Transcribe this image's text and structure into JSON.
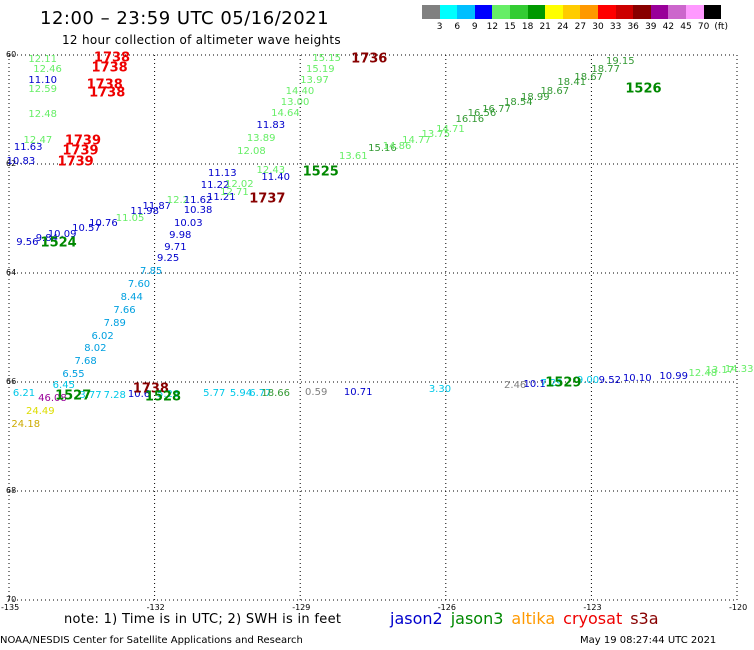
{
  "header": {
    "title": "12:00 – 23:59 UTC 05/16/2021",
    "subtitle": "12 hour collection of altimeter wave heights"
  },
  "colorbar": {
    "colors": [
      "#808080",
      "#00ffff",
      "#00bfff",
      "#0000ff",
      "#66ee66",
      "#33cc33",
      "#009900",
      "#ffff00",
      "#ffcc00",
      "#ff9900",
      "#ff0000",
      "#cc0000",
      "#880000",
      "#990099",
      "#cc66cc",
      "#ff99ff",
      "#000000"
    ],
    "labels": [
      "3",
      "6",
      "9",
      "12",
      "15",
      "18",
      "21",
      "24",
      "27",
      "30",
      "33",
      "36",
      "39",
      "42",
      "45",
      "70",
      "(ft)"
    ]
  },
  "map": {
    "lon_ticks": [
      "-135",
      "-132",
      "-129",
      "-126",
      "-123",
      "-120"
    ],
    "lat_ticks": [
      "60",
      "62",
      "64",
      "66",
      "68",
      "70"
    ],
    "lon_range": [
      -135,
      -120
    ],
    "lat_range": [
      60,
      70
    ],
    "observations": [
      {
        "t": "12.11",
        "c": "#66ee66",
        "lon": -134.6,
        "lat": 60.1
      },
      {
        "t": "12.46",
        "c": "#66ee66",
        "lon": -134.5,
        "lat": 60.28
      },
      {
        "t": "11.10",
        "c": "#0000cc",
        "lon": -134.6,
        "lat": 60.48
      },
      {
        "t": "12.59",
        "c": "#66ee66",
        "lon": -134.6,
        "lat": 60.65
      },
      {
        "t": "12.48",
        "c": "#66ee66",
        "lon": -134.6,
        "lat": 61.1
      },
      {
        "t": "12.47",
        "c": "#66ee66",
        "lon": -134.7,
        "lat": 61.58
      },
      {
        "t": "11.63",
        "c": "#0000cc",
        "lon": -134.9,
        "lat": 61.7
      },
      {
        "t": "10.83",
        "c": "#0000cc",
        "lon": -135.05,
        "lat": 61.97
      },
      {
        "t": "9.56",
        "c": "#0000cc",
        "lon": -134.85,
        "lat": 63.45
      },
      {
        "t": "9.84",
        "c": "#0000cc",
        "lon": -134.45,
        "lat": 63.38
      },
      {
        "t": "10.09",
        "c": "#0000cc",
        "lon": -134.2,
        "lat": 63.3
      },
      {
        "t": "10.57",
        "c": "#0000cc",
        "lon": -133.7,
        "lat": 63.2
      },
      {
        "t": "10.76",
        "c": "#0000cc",
        "lon": -133.35,
        "lat": 63.1
      },
      {
        "t": "11.05",
        "c": "#66ee66",
        "lon": -132.8,
        "lat": 63.0
      },
      {
        "t": "11.98",
        "c": "#0000cc",
        "lon": -132.5,
        "lat": 62.88
      },
      {
        "t": "11.87",
        "c": "#0000cc",
        "lon": -132.25,
        "lat": 62.78
      },
      {
        "t": "12.2",
        "c": "#66ee66",
        "lon": -131.75,
        "lat": 62.68
      },
      {
        "t": "11.62",
        "c": "#0000cc",
        "lon": -131.4,
        "lat": 62.68
      },
      {
        "t": "11.21",
        "c": "#0000cc",
        "lon": -130.92,
        "lat": 62.62
      },
      {
        "t": "11.22",
        "c": "#0000cc",
        "lon": -131.05,
        "lat": 62.4
      },
      {
        "t": "12.02",
        "c": "#66ee66",
        "lon": -130.55,
        "lat": 62.38
      },
      {
        "t": "12.71",
        "c": "#66ee66",
        "lon": -130.65,
        "lat": 62.54
      },
      {
        "t": "11.13",
        "c": "#0000cc",
        "lon": -130.9,
        "lat": 62.18
      },
      {
        "t": "11.40",
        "c": "#0000cc",
        "lon": -129.8,
        "lat": 62.25
      },
      {
        "t": "12.43",
        "c": "#66ee66",
        "lon": -129.9,
        "lat": 62.12
      },
      {
        "t": "12.08",
        "c": "#66ee66",
        "lon": -130.3,
        "lat": 61.78
      },
      {
        "t": "13.89",
        "c": "#66ee66",
        "lon": -130.1,
        "lat": 61.55
      },
      {
        "t": "11.83",
        "c": "#0000cc",
        "lon": -129.9,
        "lat": 61.3
      },
      {
        "t": "14.64",
        "c": "#66ee66",
        "lon": -129.6,
        "lat": 61.08
      },
      {
        "t": "13.00",
        "c": "#66ee66",
        "lon": -129.4,
        "lat": 60.88
      },
      {
        "t": "14.40",
        "c": "#66ee66",
        "lon": -129.3,
        "lat": 60.68
      },
      {
        "t": "13.97",
        "c": "#66ee66",
        "lon": -129.0,
        "lat": 60.47
      },
      {
        "t": "15.19",
        "c": "#66ee66",
        "lon": -128.88,
        "lat": 60.27
      },
      {
        "t": "15.15",
        "c": "#66ee66",
        "lon": -128.75,
        "lat": 60.07
      },
      {
        "t": "10.38",
        "c": "#0000cc",
        "lon": -131.4,
        "lat": 62.87
      },
      {
        "t": "10.03",
        "c": "#0000cc",
        "lon": -131.6,
        "lat": 63.1
      },
      {
        "t": "9.98",
        "c": "#0000cc",
        "lon": -131.7,
        "lat": 63.33
      },
      {
        "t": "9.71",
        "c": "#0000cc",
        "lon": -131.8,
        "lat": 63.55
      },
      {
        "t": "9.25",
        "c": "#0000cc",
        "lon": -131.95,
        "lat": 63.75
      },
      {
        "t": "7.85",
        "c": "#00a0e0",
        "lon": -132.3,
        "lat": 63.98
      },
      {
        "t": "7.60",
        "c": "#00a0e0",
        "lon": -132.55,
        "lat": 64.22
      },
      {
        "t": "8.44",
        "c": "#00a0e0",
        "lon": -132.7,
        "lat": 64.46
      },
      {
        "t": "7.66",
        "c": "#00a0e0",
        "lon": -132.85,
        "lat": 64.7
      },
      {
        "t": "7.89",
        "c": "#00a0e0",
        "lon": -133.05,
        "lat": 64.93
      },
      {
        "t": "6.02",
        "c": "#00a0e0",
        "lon": -133.3,
        "lat": 65.17
      },
      {
        "t": "8.02",
        "c": "#00a0e0",
        "lon": -133.45,
        "lat": 65.4
      },
      {
        "t": "7.68",
        "c": "#00a0e0",
        "lon": -133.65,
        "lat": 65.64
      },
      {
        "t": "6.55",
        "c": "#00a0e0",
        "lon": -133.9,
        "lat": 65.88
      },
      {
        "t": "6.45",
        "c": "#00c8e8",
        "lon": -134.1,
        "lat": 66.08
      },
      {
        "t": "6.21",
        "c": "#00c8e8",
        "lon": -134.92,
        "lat": 66.22
      },
      {
        "t": "24.49",
        "c": "#dddd00",
        "lon": -134.65,
        "lat": 66.55
      },
      {
        "t": "24.18",
        "c": "#ccaa00",
        "lon": -134.95,
        "lat": 66.78
      },
      {
        "t": "46.08",
        "c": "#990099",
        "lon": -134.4,
        "lat": 66.32
      },
      {
        "t": "3.77",
        "c": "#00c8e8",
        "lon": -133.55,
        "lat": 66.25
      },
      {
        "t": "7.28",
        "c": "#00c8e8",
        "lon": -133.05,
        "lat": 66.25
      },
      {
        "t": "10.6",
        "c": "#0000cc",
        "lon": -132.55,
        "lat": 66.24
      },
      {
        "t": "5.26",
        "c": "#00c8e8",
        "lon": -131.95,
        "lat": 66.23
      },
      {
        "t": "5.77",
        "c": "#00c8e8",
        "lon": -131.0,
        "lat": 66.22
      },
      {
        "t": "5.94",
        "c": "#00c8e8",
        "lon": -130.45,
        "lat": 66.22
      },
      {
        "t": "6.77",
        "c": "#00c8e8",
        "lon": -130.05,
        "lat": 66.22
      },
      {
        "t": "18.66",
        "c": "#339933",
        "lon": -129.8,
        "lat": 66.22
      },
      {
        "t": "0.59",
        "c": "#808080",
        "lon": -128.9,
        "lat": 66.2
      },
      {
        "t": "10.71",
        "c": "#0000cc",
        "lon": -128.1,
        "lat": 66.2
      },
      {
        "t": "3.30",
        "c": "#00c8e8",
        "lon": -126.35,
        "lat": 66.15
      },
      {
        "t": "2.46",
        "c": "#808080",
        "lon": -124.8,
        "lat": 66.07
      },
      {
        "t": "10.1",
        "c": "#0000cc",
        "lon": -124.4,
        "lat": 66.05
      },
      {
        "t": "7.29",
        "c": "#00c8e8",
        "lon": -124.05,
        "lat": 66.03
      },
      {
        "t": "9.00",
        "c": "#00c8e8",
        "lon": -123.3,
        "lat": 65.98
      },
      {
        "t": "9.52",
        "c": "#0000cc",
        "lon": -122.85,
        "lat": 65.98
      },
      {
        "t": "10.10",
        "c": "#0000cc",
        "lon": -122.35,
        "lat": 65.95
      },
      {
        "t": "10.99",
        "c": "#0000cc",
        "lon": -121.6,
        "lat": 65.9
      },
      {
        "t": "12.48",
        "c": "#66ee66",
        "lon": -121.0,
        "lat": 65.85
      },
      {
        "t": "13.17",
        "c": "#66ee66",
        "lon": -120.65,
        "lat": 65.8
      },
      {
        "t": "14.33",
        "c": "#66ee66",
        "lon": -120.25,
        "lat": 65.78
      },
      {
        "t": "13.61",
        "c": "#66ee66",
        "lon": -128.2,
        "lat": 61.88
      },
      {
        "t": "15.16",
        "c": "#339933",
        "lon": -127.6,
        "lat": 61.73
      },
      {
        "t": "14.86",
        "c": "#66ee66",
        "lon": -127.3,
        "lat": 61.68
      },
      {
        "t": "14.77",
        "c": "#66ee66",
        "lon": -126.9,
        "lat": 61.58
      },
      {
        "t": "13.75",
        "c": "#66ee66",
        "lon": -126.5,
        "lat": 61.47
      },
      {
        "t": "14.71",
        "c": "#66ee66",
        "lon": -126.2,
        "lat": 61.37
      },
      {
        "t": "16.16",
        "c": "#339933",
        "lon": -125.8,
        "lat": 61.2
      },
      {
        "t": "16.56",
        "c": "#339933",
        "lon": -125.55,
        "lat": 61.08
      },
      {
        "t": "16.77",
        "c": "#339933",
        "lon": -125.25,
        "lat": 61.0
      },
      {
        "t": "18.54",
        "c": "#339933",
        "lon": -124.8,
        "lat": 60.88
      },
      {
        "t": "18.99",
        "c": "#339933",
        "lon": -124.45,
        "lat": 60.78
      },
      {
        "t": "18.67",
        "c": "#339933",
        "lon": -124.05,
        "lat": 60.68
      },
      {
        "t": "18.41",
        "c": "#339933",
        "lon": -123.7,
        "lat": 60.52
      },
      {
        "t": "18.67",
        "c": "#339933",
        "lon": -123.35,
        "lat": 60.42
      },
      {
        "t": "18.77",
        "c": "#339933",
        "lon": -123.0,
        "lat": 60.28
      },
      {
        "t": "19.15",
        "c": "#339933",
        "lon": -122.7,
        "lat": 60.12
      }
    ],
    "time_labels": [
      {
        "t": "1738",
        "c": "#ee0000",
        "lon": -133.25,
        "lat": 60.05
      },
      {
        "t": "1738",
        "c": "#ee0000",
        "lon": -133.3,
        "lat": 60.24
      },
      {
        "t": "1738",
        "c": "#ee0000",
        "lon": -133.4,
        "lat": 60.55
      },
      {
        "t": "1738",
        "c": "#ee0000",
        "lon": -133.35,
        "lat": 60.7
      },
      {
        "t": "1739",
        "c": "#ee0000",
        "lon": -133.85,
        "lat": 61.58
      },
      {
        "t": "1739",
        "c": "#ee0000",
        "lon": -133.9,
        "lat": 61.77
      },
      {
        "t": "1739",
        "c": "#ee0000",
        "lon": -134.0,
        "lat": 61.97
      },
      {
        "t": "1736",
        "c": "#880000",
        "lon": -127.95,
        "lat": 60.07
      },
      {
        "t": "1737",
        "c": "#880000",
        "lon": -130.05,
        "lat": 62.64
      },
      {
        "t": "1525",
        "c": "#008800",
        "lon": -128.95,
        "lat": 62.15
      },
      {
        "t": "1524",
        "c": "#008800",
        "lon": -134.35,
        "lat": 63.45
      },
      {
        "t": "1526",
        "c": "#008800",
        "lon": -122.3,
        "lat": 60.62
      },
      {
        "t": "1738",
        "c": "#880000",
        "lon": -132.45,
        "lat": 66.13
      },
      {
        "t": "1527",
        "c": "#008800",
        "lon": -134.05,
        "lat": 66.26
      },
      {
        "t": "1528",
        "c": "#008800",
        "lon": -132.2,
        "lat": 66.27
      },
      {
        "t": "1529",
        "c": "#008800",
        "lon": -123.95,
        "lat": 66.02
      }
    ]
  },
  "footer": {
    "note": "note: 1) Time is in UTC; 2) SWH is in feet",
    "legend": [
      {
        "name": "jason2",
        "color": "#0000cc"
      },
      {
        "name": "jason3",
        "color": "#008800"
      },
      {
        "name": "altika",
        "color": "#ff9900"
      },
      {
        "name": "cryosat",
        "color": "#ee0000"
      },
      {
        "name": "s3a",
        "color": "#880000"
      }
    ],
    "credit": "NOAA/NESDIS Center for Satellite Applications and Research",
    "date": "May 19 08:27:44 UTC 2021"
  }
}
